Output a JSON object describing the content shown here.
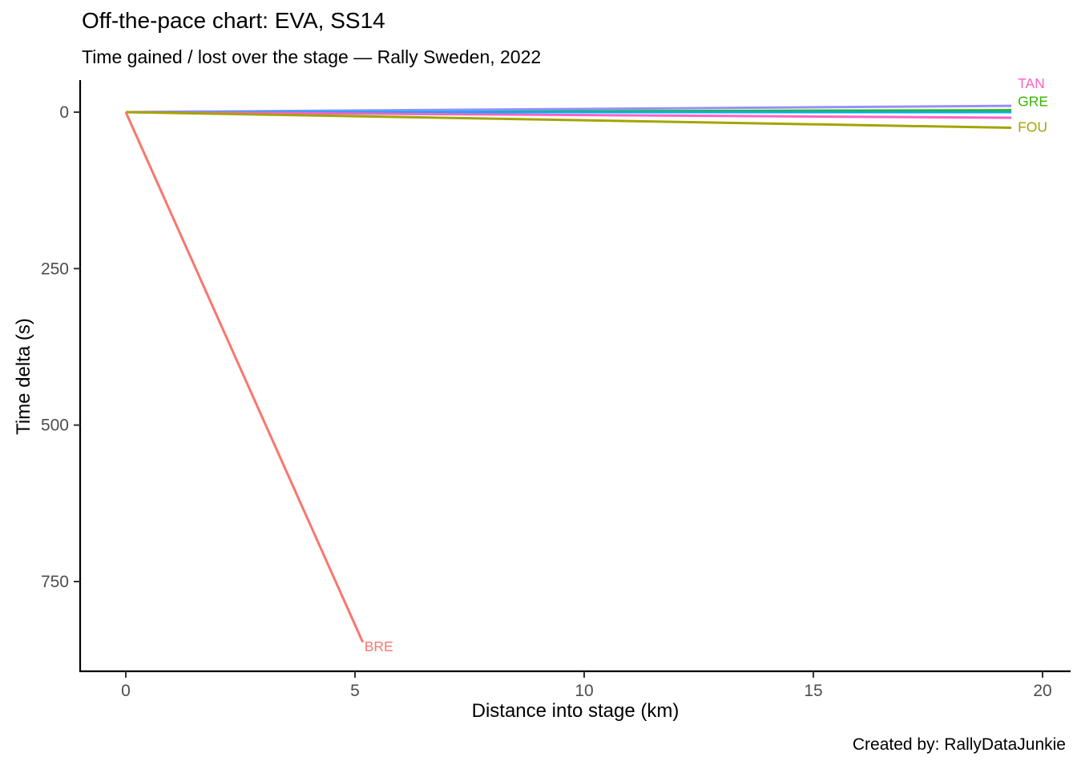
{
  "header": {
    "title": "Off-the-pace chart: EVA, SS14",
    "subtitle": "Time gained / lost over the stage — Rally Sweden, 2022"
  },
  "caption": "Created by: RallyDataJunkie",
  "chart_data": {
    "type": "line",
    "title": "Off-the-pace chart: EVA, SS14",
    "subtitle": "Time gained / lost over the stage — Rally Sweden, 2022",
    "xlabel": "Distance into stage (km)",
    "ylabel": "Time delta (s)",
    "x_ticks": [
      0,
      5,
      10,
      15,
      20
    ],
    "y_ticks": [
      0,
      250,
      500,
      750
    ],
    "xlim": [
      0,
      20.8
    ],
    "ylim": [
      -60,
      885
    ],
    "y_axis_reversed": true,
    "grid": false,
    "legend_position": "none (direct line-end labels)",
    "reference_driver": "EVA",
    "text_color": "#4D4D4D",
    "axis_color": "#000000",
    "series": [
      {
        "name": "GRE",
        "label": "GRE",
        "color": "#39B600",
        "x": [
          0,
          19.32
        ],
        "y": [
          0,
          -3
        ],
        "label_dx": 8,
        "label_dy": -5
      },
      {
        "name": "unlabeled-purple",
        "label": "",
        "color": "#9590FF",
        "x": [
          0,
          19.32
        ],
        "y": [
          0,
          -10
        ]
      },
      {
        "name": "unlabeled-blue",
        "label": "",
        "color": "#00B0F6",
        "x": [
          0,
          19.32
        ],
        "y": [
          0,
          0
        ]
      },
      {
        "name": "TAN",
        "label": "TAN",
        "color": "#FF61C3",
        "x": [
          0,
          19.32
        ],
        "y": [
          0,
          9
        ],
        "label_dx": 8,
        "label_dy": -37
      },
      {
        "name": "FOU",
        "label": "FOU",
        "color": "#A3A500",
        "x": [
          0,
          19.32
        ],
        "y": [
          0,
          25
        ],
        "label_dx": 8,
        "label_dy": 5
      },
      {
        "name": "BRE",
        "label": "BRE",
        "color": "#F8766D",
        "x": [
          0,
          5.17
        ],
        "y": [
          0,
          847
        ],
        "label_dx": 2,
        "label_dy": 11
      }
    ]
  }
}
